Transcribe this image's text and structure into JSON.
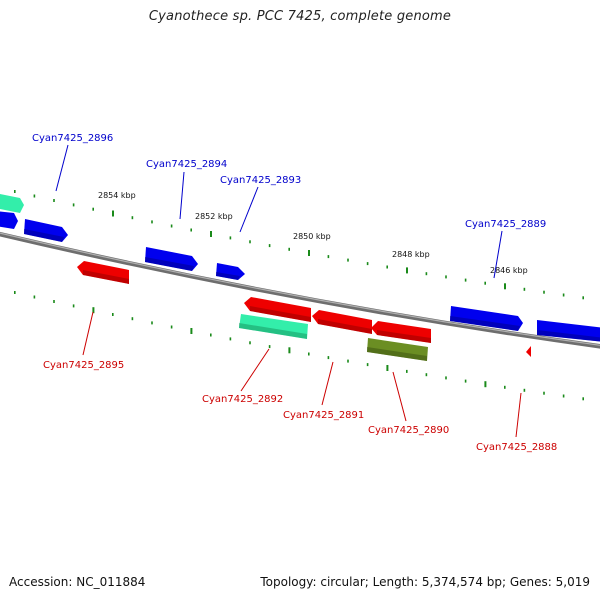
{
  "title": "Cyanothece sp. PCC 7425, complete genome",
  "footer": {
    "accession": "Accession: NC_011884",
    "summary": "Topology: circular; Length: 5,374,574 bp; Genes: 5,019"
  },
  "colors": {
    "backbone": "#8a8a8a",
    "forward_label": "#0000cc",
    "reverse_label": "#cc0000",
    "tick": "#1a8a1a"
  },
  "kbp_labels": [
    "2854 kbp",
    "2852 kbp",
    "2850 kbp",
    "2848 kbp",
    "2846 kbp"
  ],
  "genes_forward": [
    {
      "label": "Cyan7425_2896",
      "color": "#0000ee"
    },
    {
      "label": "Cyan7425_2894",
      "color": "#0000ee"
    },
    {
      "label": "Cyan7425_2893",
      "color": "#0000ee"
    },
    {
      "label": "Cyan7425_2889",
      "color": "#0000ee"
    }
  ],
  "genes_reverse": [
    {
      "label": "Cyan7425_2895",
      "color": "#ee0000"
    },
    {
      "label": "Cyan7425_2892",
      "color": "#33eeaa"
    },
    {
      "label": "Cyan7425_2891",
      "color": "#ee0000"
    },
    {
      "label": "Cyan7425_2890",
      "color": "#6b8e23"
    },
    {
      "label": "Cyan7425_2888",
      "color": "#ee0000"
    }
  ]
}
